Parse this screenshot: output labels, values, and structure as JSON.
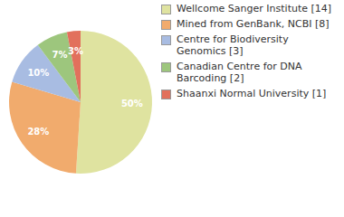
{
  "chart_data": {
    "type": "pie",
    "categories": [
      "Wellcome Sanger Institute [14]",
      "Mined from GenBank, NCBI [8]",
      "Centre for Biodiversity Genomics [3]",
      "Canadian Centre for DNA Barcoding [2]",
      "Shaanxi Normal University [1]"
    ],
    "values": [
      50,
      28,
      10,
      7,
      3
    ],
    "value_labels": [
      "50%",
      "28%",
      "10%",
      "7%",
      "3%"
    ],
    "colors": [
      "#dfe3a0",
      "#f1ab6d",
      "#a8bce2",
      "#9dc67d",
      "#e2705c"
    ],
    "data_labels": true
  }
}
